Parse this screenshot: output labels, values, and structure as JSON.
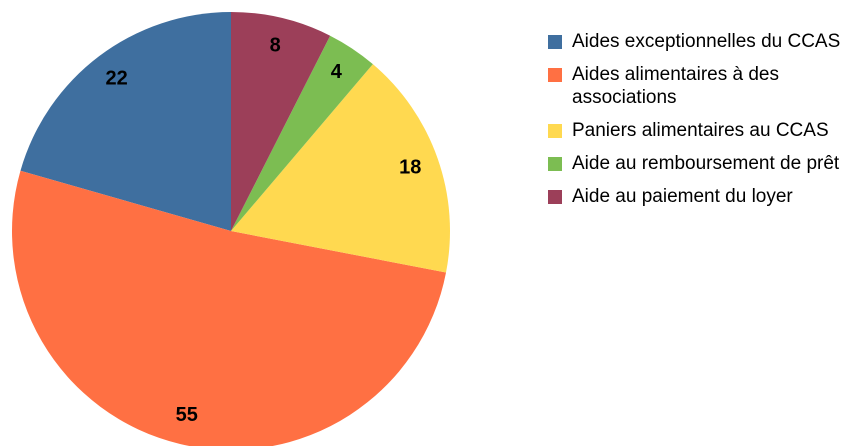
{
  "chart_data": {
    "type": "pie",
    "categories": [
      "Aides exceptionnelles du CCAS",
      "Aides alimentaires à des associations",
      "Paniers alimentaires au CCAS",
      "Aide au remboursement de prêt",
      "Aide au paiement du loyer"
    ],
    "values": [
      22,
      55,
      18,
      4,
      8
    ],
    "colors": [
      "#3f6f9f",
      "#ff7043",
      "#ffd950",
      "#7cbd52",
      "#9c3f59"
    ]
  }
}
